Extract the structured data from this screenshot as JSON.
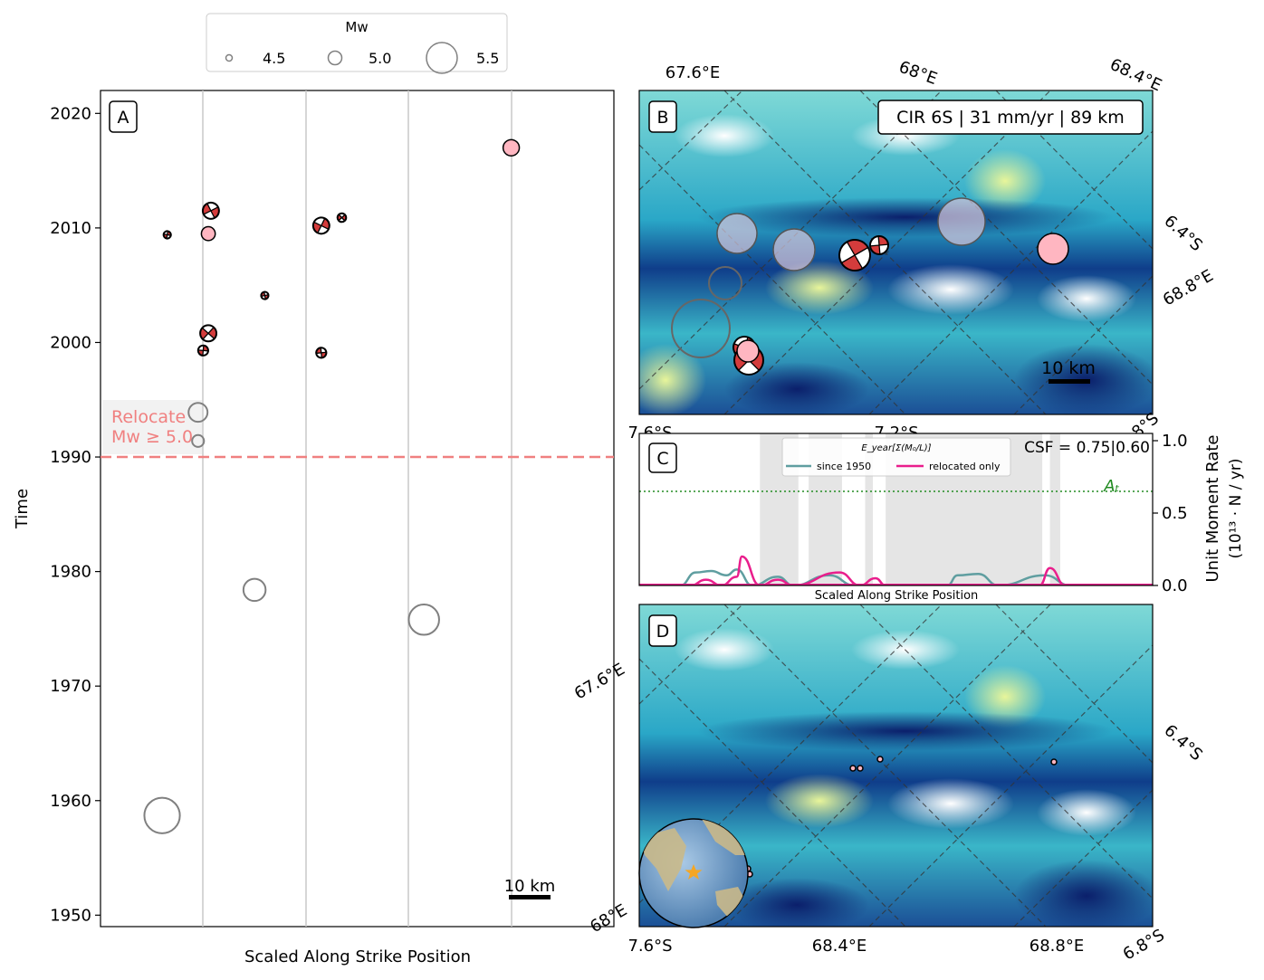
{
  "legend": {
    "title": "Mw",
    "entries": [
      {
        "label": "4.5",
        "mw": 4.5
      },
      {
        "label": "5.0",
        "mw": 5.0
      },
      {
        "label": "5.5",
        "mw": 5.5
      }
    ]
  },
  "colors": {
    "pink": "#ffb6c1",
    "mech_red": "#d43c3c",
    "hollow": "#808080",
    "relocate": "#f08080",
    "teal": "#5f9ea0",
    "magenta": "#e91e8c",
    "green": "#228b22",
    "shade": "#e5e5e5"
  },
  "panel_a": {
    "label": "A",
    "ylabel": "Time",
    "xlabel": "Scaled Along Strike Position",
    "yticks": [
      "1950",
      "1960",
      "1970",
      "1980",
      "1990",
      "2000",
      "2010",
      "2020"
    ],
    "relocate_text": [
      "Relocate",
      "Mw ≥ 5.0"
    ],
    "relocate_year": 1990,
    "scalebar": "10 km"
  },
  "panel_b": {
    "label": "B",
    "title": "CIR 6S | 31 mm/yr | 89 km",
    "scalebar": "10 km",
    "lon_labels": [
      "67.6°E",
      "68°E",
      "68.4°E",
      "68.8°E"
    ],
    "lat_labels": [
      "6.4°S",
      "7.6°S",
      "7.2°S",
      "6.8°S"
    ]
  },
  "panel_c": {
    "label": "C",
    "csf": "CSF = 0.75|0.60",
    "xlabel": "Scaled Along Strike Position",
    "ylabel_line1": "Unit Moment Rate",
    "ylabel_line2": "(10¹³ · N / yr)",
    "yticks": [
      "0.0",
      "0.5",
      "1.0"
    ],
    "threshold_label": "Aₜ",
    "threshold": 0.65,
    "legend_title": "E_year[Σ(M₀/L)]",
    "series_names": [
      "since 1950",
      "relocated only"
    ]
  },
  "panel_d": {
    "label": "D",
    "lon_labels": [
      "67.6°E",
      "68°E",
      "68.4°E",
      "68.8°E"
    ],
    "lat_labels": [
      "6.4°S",
      "7.6°S",
      "6.8°S"
    ]
  },
  "chart_data": {
    "type": "scatter",
    "title": "",
    "xlabel": "Scaled Along Strike Position",
    "ylabel": "Time",
    "xlim": [
      0,
      1
    ],
    "ylim": [
      1949,
      2022
    ],
    "events": [
      {
        "x": 0.12,
        "y": 1958.7,
        "mw": 5.6,
        "kind": "hollow"
      },
      {
        "x": 0.3,
        "y": 1978.4,
        "mw": 5.3,
        "kind": "hollow"
      },
      {
        "x": 0.63,
        "y": 1975.8,
        "mw": 5.5,
        "kind": "hollow"
      },
      {
        "x": 0.19,
        "y": 1991.4,
        "mw": 4.9,
        "kind": "hollow"
      },
      {
        "x": 0.19,
        "y": 1993.9,
        "mw": 5.2,
        "kind": "hollow"
      },
      {
        "x": 0.2,
        "y": 1999.3,
        "mw": 4.8,
        "kind": "mechanism"
      },
      {
        "x": 0.21,
        "y": 2000.8,
        "mw": 5.1,
        "kind": "mechanism"
      },
      {
        "x": 0.32,
        "y": 2004.1,
        "mw": 4.6,
        "kind": "mechanism"
      },
      {
        "x": 0.43,
        "y": 2010.2,
        "mw": 5.1,
        "kind": "mechanism"
      },
      {
        "x": 0.215,
        "y": 2011.5,
        "mw": 5.1,
        "kind": "mechanism"
      },
      {
        "x": 0.13,
        "y": 2009.4,
        "mw": 4.6,
        "kind": "mechanism"
      },
      {
        "x": 0.47,
        "y": 2010.9,
        "mw": 4.7,
        "kind": "mechanism"
      },
      {
        "x": 0.43,
        "y": 1999.1,
        "mw": 4.8,
        "kind": "mechanism"
      },
      {
        "x": 0.21,
        "y": 2009.5,
        "mw": 5.0,
        "kind": "pink"
      },
      {
        "x": 0.8,
        "y": 2017.0,
        "mw": 5.1,
        "kind": "pink"
      }
    ],
    "moment_rate": {
      "shaded_ranges": [
        [
          0.235,
          0.31
        ],
        [
          0.33,
          0.395
        ],
        [
          0.44,
          0.455
        ],
        [
          0.48,
          0.785
        ],
        [
          0.8,
          0.82
        ]
      ],
      "series": [
        {
          "name": "since 1950",
          "points": [
            [
              0.08,
              0.0
            ],
            [
              0.11,
              0.09
            ],
            [
              0.14,
              0.1
            ],
            [
              0.17,
              0.07
            ],
            [
              0.19,
              0.11
            ],
            [
              0.22,
              0.0
            ],
            [
              0.27,
              0.06
            ],
            [
              0.3,
              0.0
            ],
            [
              0.37,
              0.07
            ],
            [
              0.42,
              0.0
            ],
            [
              0.6,
              0.0
            ],
            [
              0.62,
              0.07
            ],
            [
              0.66,
              0.08
            ],
            [
              0.7,
              0.0
            ],
            [
              0.79,
              0.07
            ],
            [
              0.84,
              0.0
            ]
          ]
        },
        {
          "name": "relocated only",
          "points": [
            [
              0.1,
              0.0
            ],
            [
              0.13,
              0.04
            ],
            [
              0.16,
              0.0
            ],
            [
              0.19,
              0.06
            ],
            [
              0.2,
              0.2
            ],
            [
              0.235,
              0.0
            ],
            [
              0.27,
              0.04
            ],
            [
              0.3,
              0.0
            ],
            [
              0.39,
              0.09
            ],
            [
              0.43,
              0.0
            ],
            [
              0.46,
              0.05
            ],
            [
              0.48,
              0.0
            ],
            [
              0.78,
              0.0
            ],
            [
              0.8,
              0.12
            ],
            [
              0.83,
              0.0
            ]
          ]
        }
      ]
    }
  }
}
